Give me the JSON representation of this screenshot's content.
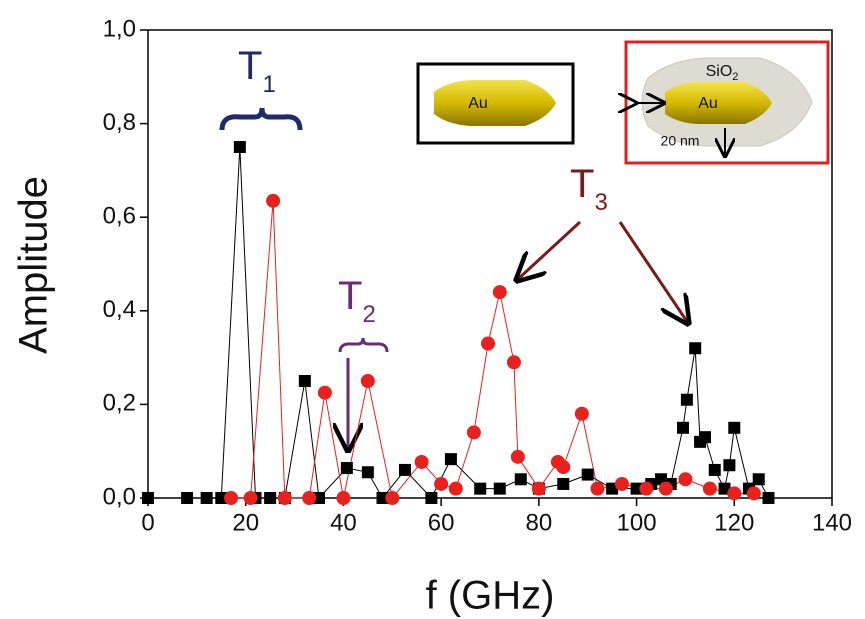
{
  "chart_data": {
    "type": "line",
    "x_label": "f (GHz)",
    "y_label": "Amplitude",
    "xlim": [
      0,
      140
    ],
    "xticks": [
      0,
      20,
      40,
      60,
      80,
      100,
      120,
      140
    ],
    "ylim": [
      0,
      1.0
    ],
    "yticks": [
      {
        "value": 0,
        "label": "0,0"
      },
      {
        "value": 0.2,
        "label": "0,2"
      },
      {
        "value": 0.4,
        "label": "0,4"
      },
      {
        "value": 0.6,
        "label": "0,6"
      },
      {
        "value": 0.8,
        "label": "0,8"
      },
      {
        "value": 1.0,
        "label": "1,0"
      }
    ],
    "series": [
      {
        "color": "#000000",
        "marker": "square",
        "x": [
          0,
          8,
          12,
          15,
          18.8,
          22,
          25,
          28,
          32.1,
          35,
          40.7,
          45,
          48,
          52.6,
          58,
          62,
          68,
          72,
          76.3,
          80,
          85,
          90,
          95,
          100,
          103,
          105,
          107,
          109.5,
          110.3,
          112,
          113,
          114,
          116,
          118,
          119,
          120,
          123,
          125,
          127
        ],
        "values": [
          0,
          0,
          0,
          0,
          0.75,
          0,
          0,
          0,
          0.25,
          0,
          0.064,
          0.055,
          0,
          0.06,
          0,
          0.083,
          0.02,
          0.02,
          0.04,
          0.02,
          0.03,
          0.05,
          0.02,
          0.02,
          0.03,
          0.04,
          0.03,
          0.15,
          0.21,
          0.32,
          0.12,
          0.13,
          0.06,
          0.02,
          0.07,
          0.15,
          0.02,
          0.04,
          0
        ]
      },
      {
        "color": "#e8201e",
        "marker": "circle",
        "x": [
          17,
          21,
          25.6,
          28,
          33,
          36.2,
          40,
          45,
          50,
          56,
          60,
          63,
          66.7,
          69.6,
          72,
          74.9,
          75.7,
          80,
          83.9,
          85,
          88.8,
          92,
          97,
          102,
          106,
          110,
          115,
          120,
          124
        ],
        "values": [
          0,
          0,
          0.635,
          0,
          0,
          0.225,
          0,
          0.25,
          0,
          0.077,
          0.03,
          0.02,
          0.14,
          0.33,
          0.44,
          0.29,
          0.088,
          0.02,
          0.077,
          0.066,
          0.18,
          0.02,
          0.03,
          0.02,
          0.02,
          0.04,
          0.02,
          0.01,
          0.01
        ]
      }
    ],
    "annotations": [
      {
        "text": "T",
        "sub": "1"
      },
      {
        "text": "T",
        "sub": "2"
      },
      {
        "text": "T",
        "sub": "3"
      }
    ],
    "insets": [
      {
        "label": "Au"
      },
      {
        "label": "Au",
        "shell": {
          "text": "SiO",
          "sub": "2"
        },
        "thickness": "20 nm"
      }
    ]
  }
}
